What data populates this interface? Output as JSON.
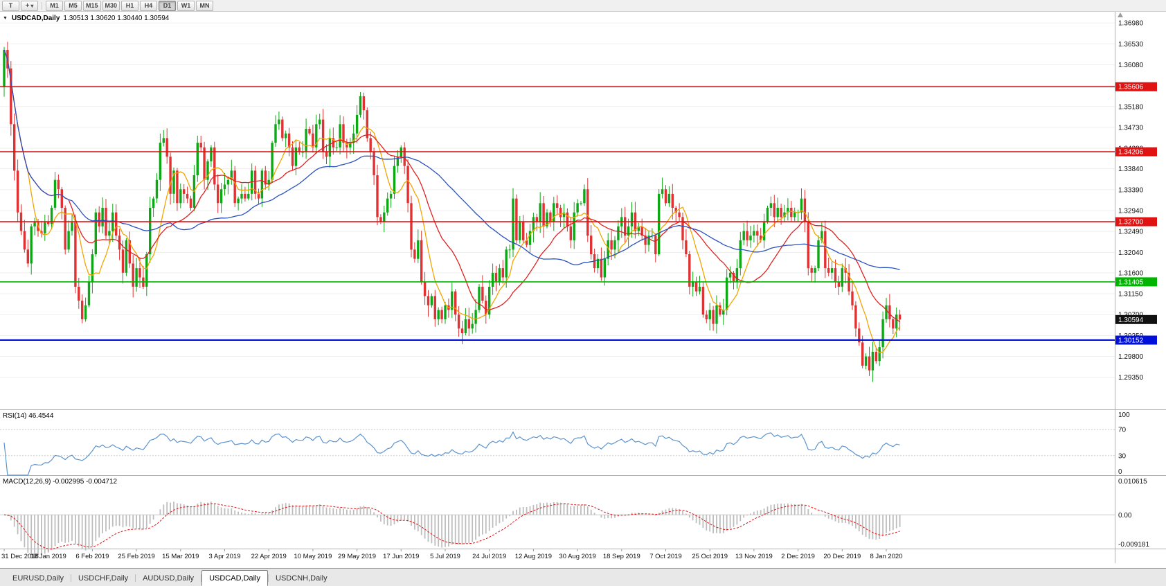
{
  "toolbar": {
    "text_tool_label": "T",
    "timeframes": [
      "M1",
      "M5",
      "M15",
      "M30",
      "H1",
      "H4",
      "D1",
      "W1",
      "MN"
    ],
    "active_timeframe": "D1"
  },
  "chart": {
    "symbol_label": "USDCAD,Daily",
    "ohlc_text": "1.30513 1.30620 1.30440 1.30594"
  },
  "chart_data": {
    "type": "candlestick",
    "title": "USDCAD,Daily",
    "ohlc_display": {
      "open": "1.30513",
      "high": "1.30620",
      "low": "1.30440",
      "close": "1.30594"
    },
    "x_tick_labels": [
      "31 Dec 2018",
      "18 Jan 2019",
      "6 Feb 2019",
      "25 Feb 2019",
      "15 Mar 2019",
      "3 Apr 2019",
      "22 Apr 2019",
      "10 May 2019",
      "29 May 2019",
      "17 Jun 2019",
      "5 Jul 2019",
      "24 Jul 2019",
      "12 Aug 2019",
      "30 Aug 2019",
      "18 Sep 2019",
      "7 Oct 2019",
      "25 Oct 2019",
      "13 Nov 2019",
      "2 Dec 2019",
      "20 Dec 2019",
      "8 Jan 2020"
    ],
    "bars_per_x_tick": 13,
    "first_open": 1.356,
    "closes": [
      1.364,
      1.36,
      1.348,
      1.338,
      1.329,
      1.325,
      1.321,
      1.318,
      1.326,
      1.327,
      1.325,
      1.3245,
      1.327,
      1.3265,
      1.33,
      1.336,
      1.334,
      1.33,
      1.321,
      1.325,
      1.327,
      1.313,
      1.31,
      1.306,
      1.309,
      1.314,
      1.32,
      1.329,
      1.326,
      1.33,
      1.324,
      1.325,
      1.329,
      1.324,
      1.321,
      1.316,
      1.323,
      1.318,
      1.313,
      1.317,
      1.315,
      1.313,
      1.32,
      1.33,
      1.332,
      1.336,
      1.344,
      1.345,
      1.341,
      1.333,
      1.338,
      1.331,
      1.334,
      1.333,
      1.332,
      1.33,
      1.337,
      1.344,
      1.343,
      1.336,
      1.34,
      1.343,
      1.335,
      1.331,
      1.334,
      1.335,
      1.336,
      1.338,
      1.331,
      1.332,
      1.333,
      1.332,
      1.333,
      1.338,
      1.333,
      1.332,
      1.338,
      1.335,
      1.336,
      1.344,
      1.348,
      1.349,
      1.345,
      1.346,
      1.343,
      1.339,
      1.343,
      1.342,
      1.342,
      1.347,
      1.346,
      1.343,
      1.348,
      1.349,
      1.342,
      1.341,
      1.345,
      1.343,
      1.343,
      1.348,
      1.344,
      1.343,
      1.344,
      1.346,
      1.35,
      1.354,
      1.351,
      1.345,
      1.342,
      1.337,
      1.328,
      1.327,
      1.329,
      1.332,
      1.333,
      1.339,
      1.341,
      1.343,
      1.339,
      1.331,
      1.321,
      1.319,
      1.323,
      1.314,
      1.311,
      1.309,
      1.311,
      1.306,
      1.308,
      1.306,
      1.309,
      1.308,
      1.312,
      1.307,
      1.304,
      1.303,
      1.306,
      1.304,
      1.305,
      1.308,
      1.313,
      1.31,
      1.307,
      1.313,
      1.316,
      1.314,
      1.317,
      1.315,
      1.321,
      1.321,
      1.332,
      1.323,
      1.327,
      1.323,
      1.322,
      1.325,
      1.328,
      1.327,
      1.331,
      1.326,
      1.329,
      1.327,
      1.331,
      1.33,
      1.328,
      1.329,
      1.326,
      1.323,
      1.329,
      1.331,
      1.331,
      1.334,
      1.324,
      1.32,
      1.317,
      1.319,
      1.315,
      1.319,
      1.323,
      1.321,
      1.323,
      1.326,
      1.328,
      1.324,
      1.326,
      1.329,
      1.325,
      1.326,
      1.324,
      1.322,
      1.324,
      1.324,
      1.32,
      1.333,
      1.334,
      1.331,
      1.333,
      1.33,
      1.329,
      1.328,
      1.323,
      1.32,
      1.313,
      1.314,
      1.312,
      1.313,
      1.307,
      1.306,
      1.308,
      1.305,
      1.309,
      1.307,
      1.308,
      1.315,
      1.316,
      1.314,
      1.317,
      1.323,
      1.325,
      1.323,
      1.324,
      1.325,
      1.324,
      1.323,
      1.327,
      1.33,
      1.331,
      1.328,
      1.33,
      1.328,
      1.329,
      1.33,
      1.328,
      1.329,
      1.329,
      1.332,
      1.327,
      1.317,
      1.316,
      1.317,
      1.323,
      1.325,
      1.317,
      1.316,
      1.317,
      1.314,
      1.313,
      1.317,
      1.316,
      1.312,
      1.309,
      1.304,
      1.301,
      1.296,
      1.298,
      1.295,
      1.299,
      1.297,
      1.3,
      1.306,
      1.309,
      1.306,
      1.304,
      1.307,
      1.30594
    ],
    "y_axis_ticks": [
      1.3698,
      1.3653,
      1.3608,
      1.3563,
      1.3518,
      1.3473,
      1.3428,
      1.3384,
      1.3339,
      1.3294,
      1.3249,
      1.3204,
      1.316,
      1.3115,
      1.307,
      1.3025,
      1.298,
      1.2935
    ],
    "y_range": [
      1.2866,
      1.3722
    ],
    "grid": true,
    "horizontal_lines": [
      {
        "value": 1.35606,
        "label": "1.35606",
        "color": "#e01212",
        "width": 1.6
      },
      {
        "value": 1.34206,
        "label": "1.34206",
        "color": "#e01212",
        "width": 1.6
      },
      {
        "value": 1.327,
        "label": "1.32700",
        "color": "#e01212",
        "width": 1.6
      },
      {
        "value": 1.31405,
        "label": "1.31405",
        "color": "#00b400",
        "width": 1.6
      },
      {
        "value": 1.30152,
        "label": "1.30152",
        "color": "#0010d8",
        "width": 2.2
      }
    ],
    "last_price": {
      "value": 1.30594,
      "label": "1.30594",
      "bg": "#111111",
      "fg": "#ffffff"
    },
    "moving_averages": [
      {
        "period": 8,
        "color": "#f0a500"
      },
      {
        "period": 20,
        "color": "#e02020"
      },
      {
        "period": 50,
        "color": "#2a52be"
      }
    ],
    "candle_up_color": "#0ea816",
    "candle_down_color": "#e03232",
    "indicators": {
      "rsi": {
        "label": "RSI(14) 46.4544",
        "period": 14,
        "last_value": 46.4544,
        "axis_labels": [
          100,
          70,
          30,
          0
        ],
        "level_lines": [
          70,
          30
        ],
        "line_color": "#5b93cf",
        "y_range": [
          0,
          100
        ]
      },
      "macd": {
        "label": "MACD(12,26,9) -0.002995 -0.004712",
        "fast_period": 12,
        "slow_period": 26,
        "signal_period": 9,
        "last_main": -0.002995,
        "last_signal": -0.004712,
        "axis_labels": [
          "0.010615",
          "0.00",
          "-0.009181"
        ],
        "y_range": [
          -0.009181,
          0.010615
        ],
        "histogram_color": "#bdbdbd",
        "signal_color": "#e01212"
      }
    }
  },
  "tabs": {
    "items": [
      "EURUSD,Daily",
      "USDCHF,Daily",
      "AUDUSD,Daily",
      "USDCAD,Daily",
      "USDCNH,Daily"
    ],
    "active": "USDCAD,Daily"
  }
}
